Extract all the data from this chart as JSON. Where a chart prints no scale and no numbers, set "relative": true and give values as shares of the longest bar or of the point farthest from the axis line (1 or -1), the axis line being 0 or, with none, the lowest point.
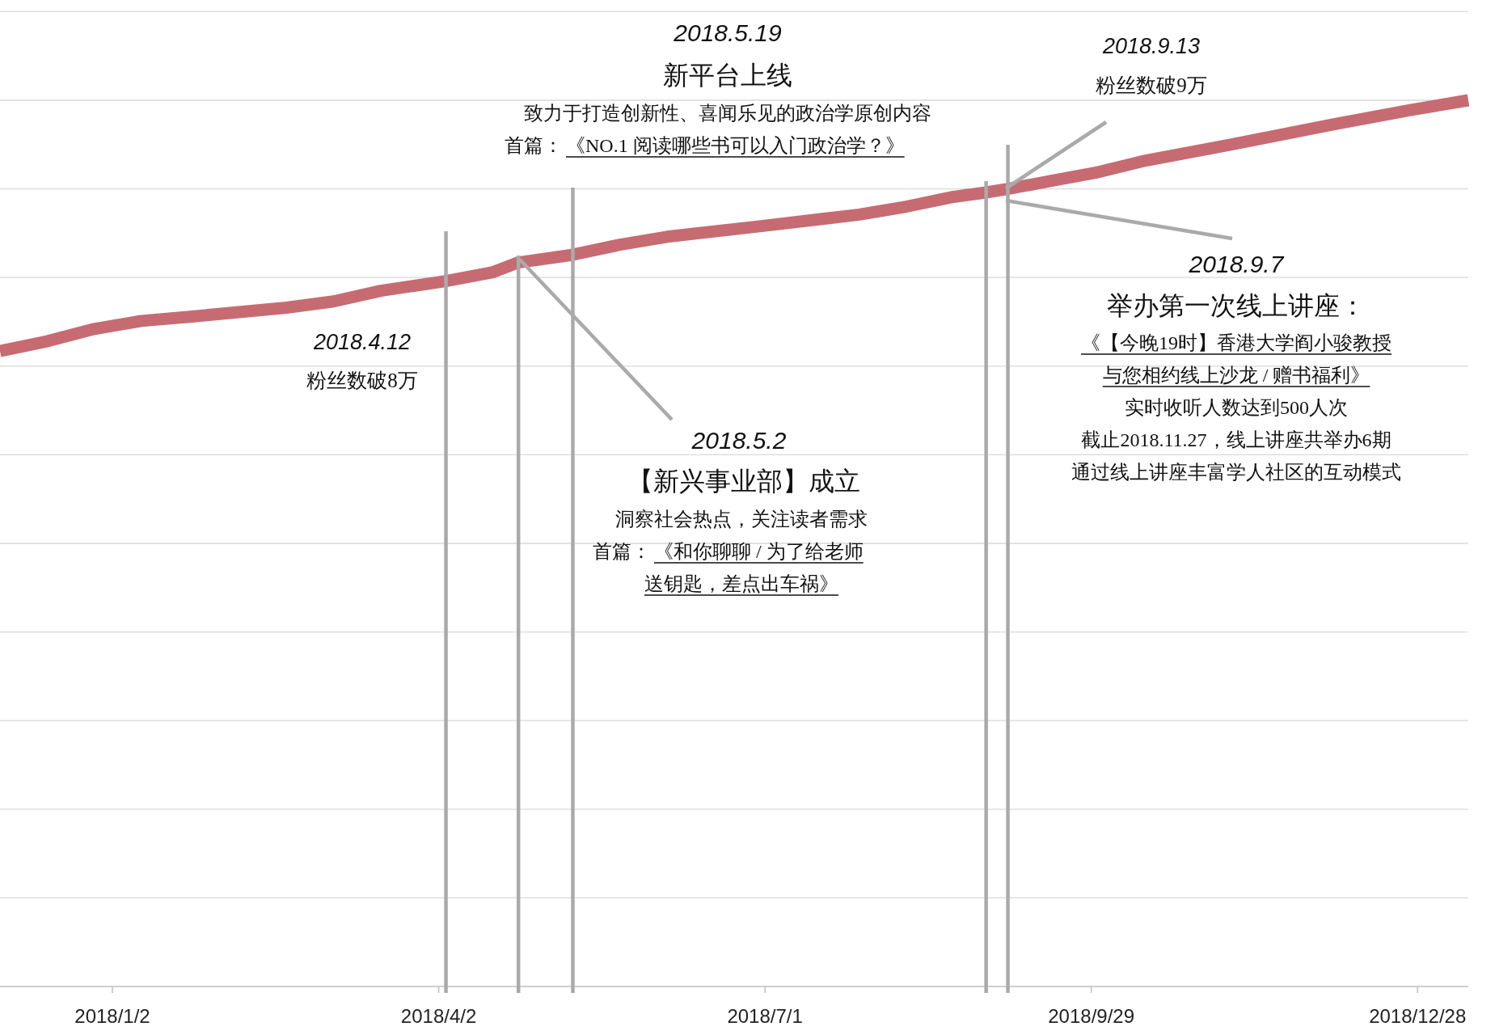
{
  "chart_data": {
    "type": "line",
    "relative": true,
    "x": [
      "2017-12-02",
      "2017-12-15",
      "2017-12-28",
      "2018-01-10",
      "2018-01-24",
      "2018-02-19",
      "2018-03-04",
      "2018-03-17",
      "2018-04-04",
      "2018-04-17",
      "2018-04-24",
      "2018-05-08",
      "2018-05-22",
      "2018-06-04",
      "2018-06-30",
      "2018-07-27",
      "2018-08-09",
      "2018-08-22",
      "2018-08-31",
      "2018-09-06",
      "2018-09-18",
      "2018-10-01",
      "2018-10-14",
      "2018-11-09",
      "2018-12-05",
      "2018-12-26",
      "2019-01-11"
    ],
    "series": [
      {
        "color": "#c76b73",
        "values": [
          0.717,
          0.728,
          0.742,
          0.751,
          0.756,
          0.766,
          0.773,
          0.785,
          0.796,
          0.806,
          0.817,
          0.825,
          0.837,
          0.846,
          0.858,
          0.871,
          0.88,
          0.891,
          0.896,
          0.9,
          0.909,
          0.919,
          0.932,
          0.952,
          0.973,
          0.989,
          1
        ]
      }
    ],
    "xlim": [
      "2017-12-02",
      "2019-01-11"
    ],
    "xticks": [
      {
        "value": "2018-01-02",
        "label": "2018/1/2"
      },
      {
        "value": "2018-04-02",
        "label": "2018/4/2"
      },
      {
        "value": "2018-07-01",
        "label": "2018/7/1"
      },
      {
        "value": "2018-09-29",
        "label": "2018/9/29"
      },
      {
        "value": "2018-12-28",
        "label": "2018/12/28"
      }
    ],
    "grid": "y",
    "ref_lines": [
      {
        "axis": "x",
        "value": "2018-04-04",
        "color": "#aaaaaa"
      },
      {
        "axis": "x",
        "value": "2018-04-24",
        "color": "#aaaaaa"
      },
      {
        "axis": "x",
        "value": "2018-05-09",
        "color": "#aaaaaa"
      },
      {
        "axis": "x",
        "value": "2018-08-31",
        "color": "#aaaaaa"
      },
      {
        "axis": "x",
        "value": "2018-09-06",
        "color": "#aaaaaa"
      }
    ],
    "annotations": [
      "2018.4.12",
      "粉丝数破8万",
      "2018.5.2",
      "【新兴事业部】成立",
      "洞察社会热点，关注读者需求",
      "首篇：",
      "《和你聊聊 / 为了给老师",
      "送钥匙，差点出车祸》",
      "2018.5.19",
      "新平台上线",
      "致力于打造创新性、喜闻乐见的政治学原创内容",
      "首篇：",
      "《NO.1 阅读哪些书可以入门政治学？》",
      "2018.9.13",
      "粉丝数破9万",
      "2018.9.7",
      "举办第一次线上讲座：",
      "《【今晚19时】香港大学阎小骏教授",
      "与您相约线上沙龙 / 赠书福利》",
      "实时收听人数达到500人次",
      "截止2018.11.27，线上讲座共举办6期",
      "通过线上讲座丰富学人社区的互动模式"
    ]
  }
}
